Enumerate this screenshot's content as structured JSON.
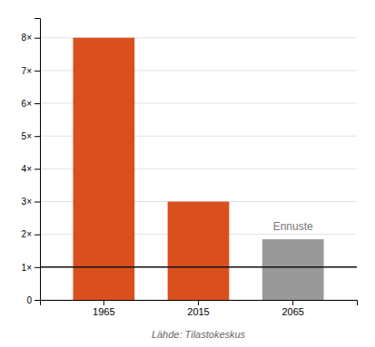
{
  "chart_data": {
    "type": "bar",
    "categories": [
      "1965",
      "2015",
      "2065"
    ],
    "values": [
      8,
      3,
      1.85
    ],
    "colors": [
      "#D94F1E",
      "#D94F1E",
      "#999999"
    ],
    "ylim": [
      0,
      8.6
    ],
    "yticks": [
      0,
      {
        "value": 1,
        "label": "1×"
      },
      {
        "value": 2,
        "label": "2×"
      },
      {
        "value": 3,
        "label": "3×"
      },
      {
        "value": 4,
        "label": "4×"
      },
      {
        "value": 5,
        "label": "5×"
      },
      {
        "value": 6,
        "label": "6×"
      },
      {
        "value": 7,
        "label": "7×"
      },
      {
        "value": 8,
        "label": "8×"
      }
    ],
    "grid": true,
    "reference_line": {
      "value": 1,
      "color": "#111111"
    },
    "annotation": "Ennuste",
    "source": "Lähde: Tilastokeskus"
  }
}
